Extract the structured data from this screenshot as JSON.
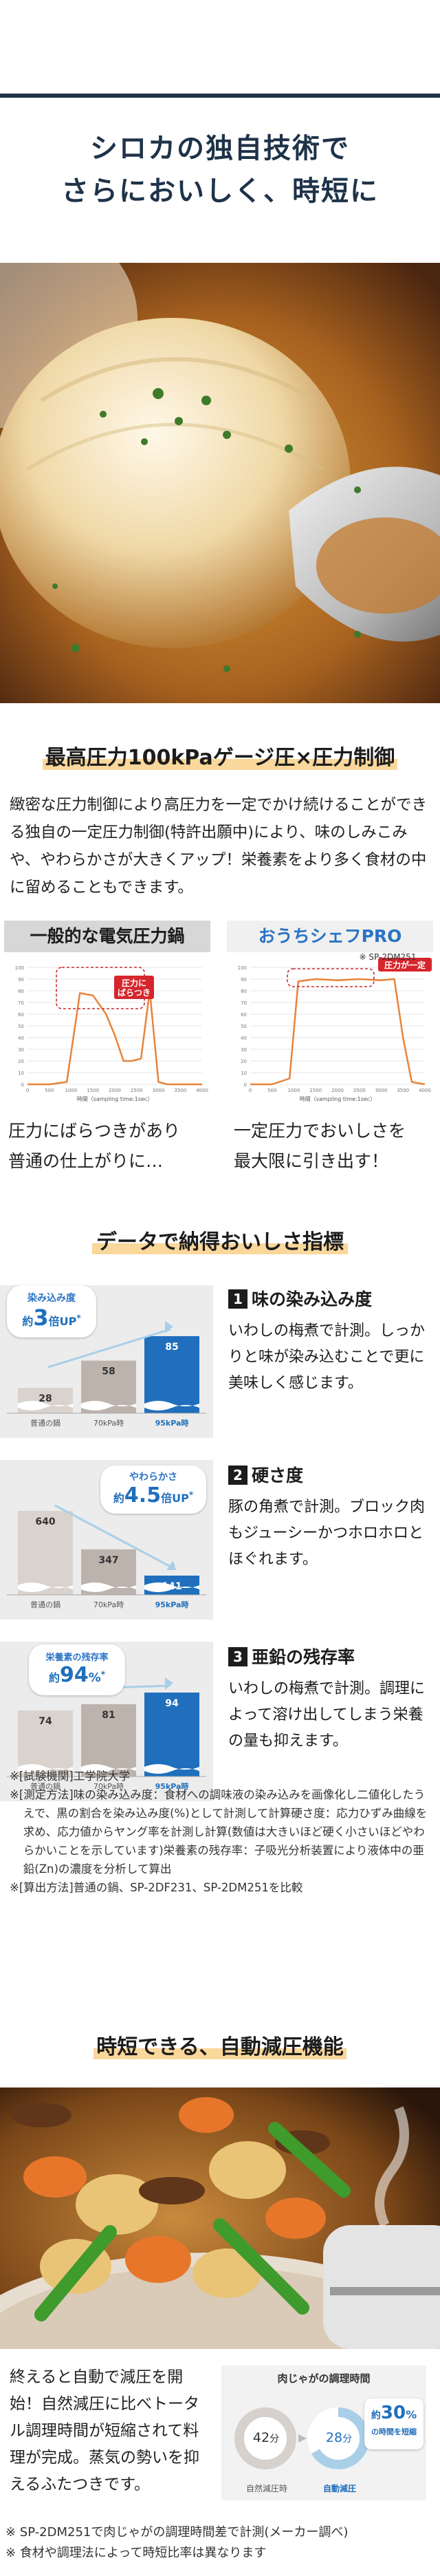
{
  "hero": {
    "title_line1": "シロカの独自技術で",
    "title_line2": "さらにおいしく、時短に"
  },
  "pressure": {
    "heading": "最高圧力100kPaゲージ圧×圧力制御",
    "body": "緻密な圧力制御により高圧力を一定でかけ続けることができる独自の一定圧力制御(特許出願中)により、味のしみこみや、やわらかさが大きくアップ！栄養素をより多く食材の中に留めることもできます。",
    "left_panel": {
      "title": "一般的な電気圧力鍋",
      "callout": "圧力に\nばらつき",
      "x_axis": "時間（sampling time:1sec）",
      "caption_line1": "圧力にばらつきがあり",
      "caption_line2": "普通の仕上がりに…"
    },
    "right_panel": {
      "title": "おうちシェフPRO",
      "model_note": "※ SP-2DM251",
      "callout": "圧力が一定",
      "x_axis": "時間（sampling time:1sec）",
      "caption_line1": "一定圧力でおいしさを",
      "caption_line2": "最大限に引き出す！"
    },
    "y_ticks": [
      "100",
      "90",
      "80",
      "70",
      "60",
      "50",
      "40",
      "30",
      "20",
      "10",
      "0"
    ],
    "x_ticks": [
      "0",
      "500",
      "1000",
      "1500",
      "2000",
      "2500",
      "3000",
      "3500",
      "4000"
    ],
    "chart_color": "#e8833a"
  },
  "chart_data": [
    {
      "type": "line",
      "x": [
        0,
        500,
        900,
        1200,
        1500,
        1800,
        2000,
        2200,
        2400,
        2600,
        2800,
        3000,
        3200,
        3400,
        3600,
        3800,
        4000
      ],
      "series": [
        {
          "values": [
            0,
            0,
            2,
            78,
            76,
            60,
            42,
            20,
            20,
            22,
            80,
            2,
            0,
            0,
            0,
            0,
            0
          ]
        }
      ],
      "ylim": [
        0,
        100
      ],
      "xlim": [
        0,
        4000
      ],
      "title": "一般的な電気圧力鍋"
    },
    {
      "type": "line",
      "x": [
        0,
        500,
        900,
        1100,
        1500,
        2000,
        2500,
        3000,
        3300,
        3500,
        3700,
        4000
      ],
      "series": [
        {
          "values": [
            0,
            0,
            5,
            88,
            90,
            89,
            90,
            89,
            90,
            40,
            2,
            0
          ]
        }
      ],
      "ylim": [
        0,
        100
      ],
      "xlim": [
        0,
        4000
      ],
      "title": "おうちシェフPRO"
    },
    {
      "type": "bar",
      "title": "味の染み込み度",
      "categories": [
        "普通の鍋",
        "70kPa時",
        "95kPa時"
      ],
      "values": [
        28,
        58,
        85
      ],
      "callout": "約3倍UP"
    },
    {
      "type": "bar",
      "title": "硬さ度",
      "categories": [
        "普通の鍋",
        "70kPa時",
        "95kPa時"
      ],
      "values": [
        640,
        347,
        141
      ],
      "callout": "約4.5倍UP"
    },
    {
      "type": "bar",
      "title": "亜鉛の残存率",
      "categories": [
        "普通の鍋",
        "70kPa時",
        "95kPa時"
      ],
      "values": [
        74,
        81,
        94
      ],
      "callout": "約94%"
    },
    {
      "type": "pie",
      "title": "肉じゃがの調理時間",
      "categories": [
        "自然減圧時",
        "自動減圧"
      ],
      "values": [
        42,
        28
      ],
      "unit": "分",
      "callout": "約30%の時間を短縮"
    }
  ],
  "data_section": {
    "heading": "データで納得おいしさ指標",
    "item1": {
      "num": "1",
      "title": "味の染み込み度",
      "desc": "いわしの梅煮で計測。しっかりと味が染み込むことで更に美味しく感じます。",
      "bubble_top": "染み込み度",
      "bubble_pre": "約",
      "bubble_big": "3",
      "bubble_post": "倍UP",
      "bubble_sup": "*",
      "values": [
        "28",
        "58",
        "85"
      ],
      "cats": [
        "普通の鍋",
        "70kPa時",
        "95kPa時"
      ]
    },
    "item2": {
      "num": "2",
      "title": "硬さ度",
      "desc": "豚の角煮で計測。ブロック肉もジューシーかつホロホロとほぐれます。",
      "bubble_top": "やわらかさ",
      "bubble_pre": "約",
      "bubble_big": "4.5",
      "bubble_post": "倍UP",
      "bubble_sup": "*",
      "values": [
        "640",
        "347",
        "141"
      ],
      "cats": [
        "普通の鍋",
        "70kPa時",
        "95kPa時"
      ]
    },
    "item3": {
      "num": "3",
      "title": "亜鉛の残存率",
      "desc": "いわしの梅煮で計測。調理によって溶け出してしまう栄養の量も抑えます。",
      "bubble_top": "栄養素の残存率",
      "bubble_pre": "約",
      "bubble_big": "94",
      "bubble_post": "%",
      "bubble_sup": "*",
      "values": [
        "74",
        "81",
        "94"
      ],
      "cats": [
        "普通の鍋",
        "70kPa時",
        "95kPa時"
      ]
    },
    "notes": [
      "※[試験機関]工学院大学",
      "※[測定方法]味の染み込み度：食材への調味液の染み込みを画像化し二値化したうえで、黒の割合を染み込み度(%)として計測して計算硬さ度：応力ひずみ曲線を求め、応力値からヤング率を計測し計算(数値は大きいほど硬く小さいほどやわらかいことを示しています)栄養素の残存率：子吸光分析装置により液体中の亜鉛(Zn)の濃度を分析して算出",
      "※[算出方法]普通の鍋、SP-2DF231、SP-2DM251を比較"
    ]
  },
  "time_section": {
    "heading": "時短できる、自動減圧機能",
    "body": "終えると自動で減圧を開始！自然減圧に比べトータル調理時間が短縮されて料理が完成。蒸気の勢いを抑えるふたつきです。",
    "box_title": "肉じゃがの調理時間",
    "left_value": "42",
    "left_unit": "分",
    "right_value": "28",
    "right_unit": "分",
    "left_label": "自然減圧時",
    "right_label": "自動減圧",
    "badge_pre": "約",
    "badge_big": "30",
    "badge_pct": "%",
    "badge_sub": "の時間を短縮",
    "footnote1": "※ SP-2DM251で肉じゃがの調理時間差で計測(メーカー調べ)",
    "footnote2": "※ 食材や調理法によって時短比率は異なります"
  },
  "colors": {
    "navy": "#1e3349",
    "orange": "#e8833a",
    "blue_bar": "#1f6fbd",
    "gray_bar": "#bdb3ad",
    "light_bar": "#d9d2cd",
    "highlight": "#fad79a",
    "red_callout": "#d6262d",
    "light_blue": "#a9cfe8"
  }
}
